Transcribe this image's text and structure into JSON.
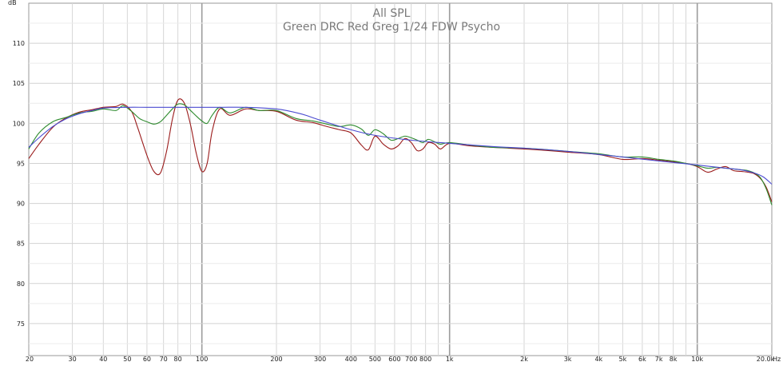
{
  "chart_data": {
    "type": "line",
    "title": "All SPL",
    "subtitle": "Green DRC Red Greg 1/24 FDW Psycho",
    "y_unit": "dB",
    "x_unit": "Hz",
    "x_scale": "log",
    "xlim": [
      20,
      20000
    ],
    "ylim": [
      71,
      115
    ],
    "grid": true,
    "y_ticks": [
      75,
      80,
      85,
      90,
      95,
      100,
      105,
      110
    ],
    "y_tick_labels": [
      "75",
      "80",
      "85",
      "90",
      "95",
      "100",
      "105",
      "110"
    ],
    "x_ticks": [
      20,
      30,
      40,
      50,
      60,
      70,
      80,
      100,
      200,
      300,
      400,
      500,
      600,
      700,
      800,
      1000,
      2000,
      3000,
      4000,
      5000,
      6000,
      7000,
      8000,
      10000,
      20000
    ],
    "x_tick_labels": [
      "20",
      "30",
      "40",
      "50",
      "60",
      "70",
      "80",
      "100",
      "200",
      "300",
      "400",
      "500",
      "600",
      "700",
      "800",
      "1k",
      "2k",
      "3k",
      "4k",
      "5k",
      "6k",
      "7k",
      "8k",
      "10k",
      "20.0k"
    ],
    "major_x": [
      100,
      1000,
      10000
    ],
    "series": [
      {
        "color": "#9a1b1b",
        "x": [
          20,
          22,
          25,
          28,
          32,
          36,
          40,
          45,
          48,
          52,
          55,
          60,
          64,
          68,
          72,
          76,
          80,
          85,
          90,
          95,
          100,
          105,
          110,
          118,
          130,
          150,
          170,
          200,
          240,
          280,
          320,
          360,
          400,
          440,
          470,
          500,
          540,
          580,
          620,
          660,
          700,
          740,
          780,
          820,
          870,
          920,
          1000,
          1200,
          1500,
          2000,
          2500,
          3000,
          4000,
          5000,
          6000,
          7000,
          8000,
          9000,
          10000,
          11000,
          12000,
          13000,
          14000,
          15000,
          16000,
          17000,
          18000,
          19000,
          20000
        ],
        "y": [
          95.6,
          97.4,
          99.5,
          100.6,
          101.4,
          101.7,
          102.0,
          102.1,
          102.4,
          101.5,
          99.5,
          96.0,
          94.0,
          93.8,
          96.5,
          100.5,
          102.9,
          102.5,
          99.8,
          96.2,
          94.0,
          95.0,
          99.0,
          101.8,
          101.0,
          101.8,
          101.6,
          101.5,
          100.4,
          100.1,
          99.6,
          99.2,
          98.8,
          97.3,
          96.7,
          98.4,
          97.4,
          96.8,
          97.2,
          98.1,
          97.6,
          96.6,
          96.8,
          97.6,
          97.4,
          96.8,
          97.5,
          97.2,
          97.0,
          96.8,
          96.6,
          96.4,
          96.1,
          95.5,
          95.6,
          95.4,
          95.2,
          95.0,
          94.6,
          93.9,
          94.3,
          94.6,
          94.1,
          94.0,
          93.9,
          93.7,
          93.1,
          92.0,
          90.2
        ]
      },
      {
        "color": "#2e8b2e",
        "x": [
          20,
          22,
          25,
          28,
          32,
          36,
          40,
          45,
          48,
          52,
          56,
          60,
          64,
          68,
          72,
          76,
          80,
          85,
          90,
          95,
          100,
          105,
          110,
          118,
          130,
          150,
          170,
          200,
          240,
          280,
          320,
          360,
          400,
          440,
          470,
          500,
          540,
          580,
          620,
          660,
          700,
          740,
          780,
          820,
          870,
          920,
          1000,
          1200,
          1500,
          2000,
          2500,
          3000,
          4000,
          5000,
          6000,
          7000,
          8000,
          9000,
          10000,
          11000,
          12000,
          13000,
          14000,
          15000,
          16000,
          17000,
          18000,
          19000,
          20000
        ],
        "y": [
          96.8,
          98.8,
          100.2,
          100.7,
          101.3,
          101.5,
          101.8,
          101.6,
          102.2,
          101.5,
          100.6,
          100.2,
          99.9,
          100.2,
          101.0,
          101.8,
          102.4,
          102.3,
          101.6,
          100.9,
          100.3,
          100.0,
          101.0,
          102.0,
          101.3,
          102.0,
          101.6,
          101.6,
          100.6,
          100.3,
          99.9,
          99.6,
          99.8,
          99.3,
          98.5,
          99.2,
          98.7,
          97.9,
          98.1,
          98.4,
          98.2,
          97.9,
          97.6,
          98.0,
          97.7,
          97.4,
          97.6,
          97.3,
          97.0,
          96.9,
          96.7,
          96.5,
          96.2,
          95.8,
          95.8,
          95.5,
          95.3,
          95.0,
          94.7,
          94.4,
          94.5,
          94.4,
          94.3,
          94.2,
          94.1,
          93.8,
          93.2,
          91.8,
          89.8
        ]
      },
      {
        "color": "#4a4ad0",
        "x": [
          20,
          22,
          25,
          28,
          32,
          36,
          40,
          50,
          60,
          80,
          100,
          120,
          150,
          200,
          250,
          300,
          400,
          500,
          700,
          1000,
          1500,
          2000,
          3000,
          5000,
          7000,
          10000,
          13000,
          15000,
          17000,
          18500,
          20000
        ],
        "y": [
          97.0,
          98.2,
          99.6,
          100.5,
          101.2,
          101.6,
          101.9,
          102.0,
          102.0,
          102.0,
          102.0,
          102.0,
          102.0,
          101.8,
          101.2,
          100.4,
          99.2,
          98.5,
          97.9,
          97.5,
          97.1,
          96.9,
          96.5,
          95.8,
          95.3,
          94.8,
          94.4,
          94.2,
          93.8,
          93.3,
          92.4
        ]
      }
    ]
  }
}
